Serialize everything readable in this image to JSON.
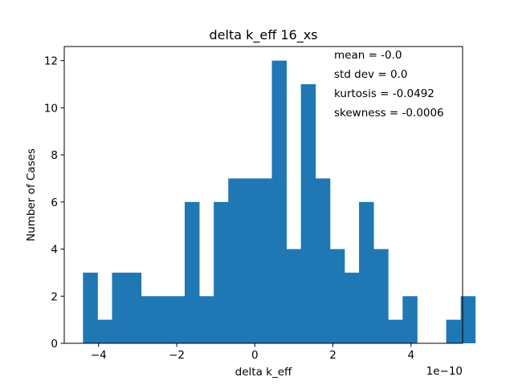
{
  "chart_data": {
    "type": "bar",
    "title": "delta k_eff 16_xs",
    "xlabel": "delta k_eff",
    "ylabel": "Number of Cases",
    "x_offset_label": "1e−10",
    "x_scale": 1e-10,
    "xlim": [
      -4.88,
      5.32
    ],
    "ylim": [
      0,
      12.6
    ],
    "bin_start": -4.4,
    "bin_width": 0.372,
    "bar_color": "#1f77b4",
    "values": [
      3,
      1,
      3,
      3,
      2,
      2,
      2,
      6,
      2,
      6,
      7,
      7,
      7,
      12,
      4,
      11,
      7,
      4,
      3,
      6,
      4,
      1,
      2,
      0,
      0,
      1,
      2
    ],
    "xticks": [
      {
        "value": -4,
        "label": "−4"
      },
      {
        "value": -2,
        "label": "−2"
      },
      {
        "value": 0,
        "label": "0"
      },
      {
        "value": 2,
        "label": "2"
      },
      {
        "value": 4,
        "label": "4"
      }
    ],
    "yticks": [
      {
        "value": 0,
        "label": "0"
      },
      {
        "value": 2,
        "label": "2"
      },
      {
        "value": 4,
        "label": "4"
      },
      {
        "value": 6,
        "label": "6"
      },
      {
        "value": 8,
        "label": "8"
      },
      {
        "value": 10,
        "label": "10"
      },
      {
        "value": 12,
        "label": "12"
      }
    ],
    "annotations": [
      "mean = -0.0",
      "std dev = 0.0",
      "kurtosis = -0.0492",
      "skewness = -0.0006"
    ],
    "grid": false,
    "legend": "none"
  }
}
